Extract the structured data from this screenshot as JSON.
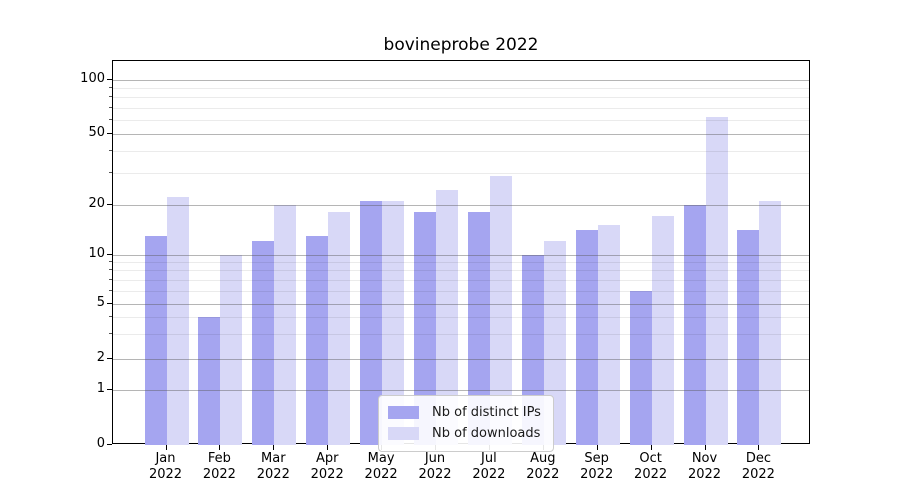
{
  "figure": {
    "background": "#ffffff"
  },
  "chart_data": {
    "type": "bar",
    "title": "bovineprobe 2022",
    "categories": [
      "Jan",
      "Feb",
      "Mar",
      "Apr",
      "May",
      "Jun",
      "Jul",
      "Aug",
      "Sep",
      "Oct",
      "Nov",
      "Dec"
    ],
    "category_year": "2022",
    "series": [
      {
        "name": "Nb of distinct IPs",
        "color": "#a5a5f0",
        "values": [
          13,
          4,
          12,
          13,
          21,
          18,
          18,
          10,
          14,
          6,
          20,
          14
        ]
      },
      {
        "name": "Nb of downloads",
        "color": "#d8d8f7",
        "values": [
          22,
          10,
          20,
          18,
          21,
          24,
          29,
          12,
          15,
          17,
          62,
          21
        ]
      }
    ],
    "yscale": "symlog",
    "yticks": {
      "values": [
        0,
        1,
        2,
        5,
        10,
        20,
        50,
        100
      ],
      "labels": [
        "0",
        "1",
        "2",
        "5",
        "10",
        "20",
        "50",
        "100"
      ]
    },
    "yminor_values": [
      3,
      4,
      6,
      7,
      8,
      9,
      30,
      40,
      60,
      70,
      80,
      90
    ],
    "ylim": [
      0,
      128
    ],
    "grid": true,
    "legend_position": "lower center"
  }
}
